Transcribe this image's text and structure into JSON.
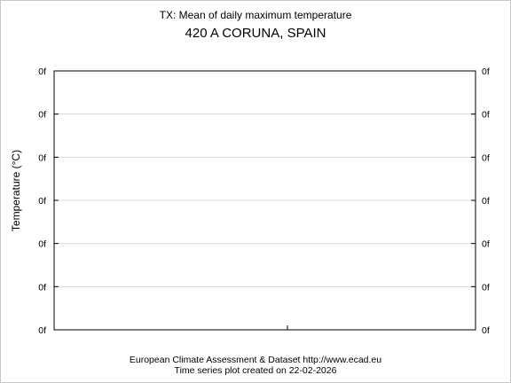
{
  "chart_data": {
    "type": "line",
    "title": "TX: Mean of daily maximum temperature",
    "subtitle": "420 A CORUNA, SPAIN",
    "ylabel": "Temperature (°C)",
    "xlabel": "",
    "y_tick_labels": [
      "0f",
      "0f",
      "0f",
      "0f",
      "0f",
      "0f",
      "0f"
    ],
    "y_tick_labels_right": [
      "0f",
      "0f",
      "0f",
      "0f",
      "0f",
      "0f",
      "0f"
    ],
    "grid": true,
    "series": []
  },
  "footer": {
    "line1": "European Climate Assessment & Dataset  http://www.ecad.eu",
    "line2": "Time series plot created on 22-02-2026"
  },
  "colors": {
    "grid": "#d9d9d9",
    "axis": "#000000",
    "frame": "#c8c8c8"
  }
}
